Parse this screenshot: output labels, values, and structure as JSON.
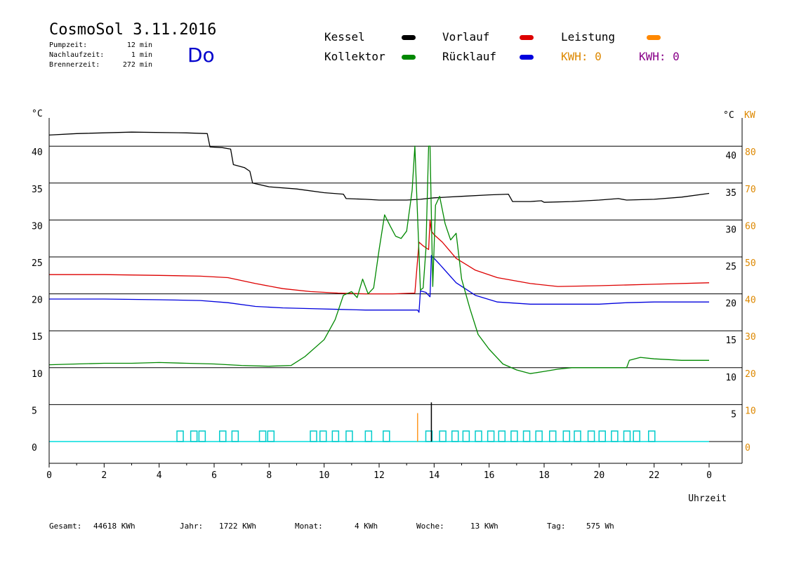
{
  "header": {
    "title": "CosmoSol 3.11.2016",
    "day": "Do",
    "stats": [
      {
        "label": "Pumpzeit:",
        "value": "12 min"
      },
      {
        "label": "Nachlaufzeit:",
        "value": "1 min"
      },
      {
        "label": "Brennerzeit:",
        "value": "272 min"
      }
    ]
  },
  "legend": {
    "kessel": {
      "label": "Kessel",
      "color": "#000000"
    },
    "vorlauf": {
      "label": "Vorlauf",
      "color": "#dd0000"
    },
    "leistung": {
      "label": "Leistung",
      "color": "#ff8800"
    },
    "kollektor": {
      "label": "Kollektor",
      "color": "#008800"
    },
    "ruecklauf": {
      "label": "Rücklauf",
      "color": "#0000dd"
    },
    "kwh1": {
      "label": "KWH: 0",
      "color": "#dd8800"
    },
    "kwh2": {
      "label": "KWH: 0",
      "color": "#880088"
    }
  },
  "footer": [
    {
      "label": "Gesamt:",
      "value": "44618 KWh"
    },
    {
      "label": "Jahr:",
      "value": "1722 KWh"
    },
    {
      "label": "Monat:",
      "value": "4 KWh"
    },
    {
      "label": "Woche:",
      "value": "13 KWh"
    },
    {
      "label": "Tag:",
      "value": "575 Wh"
    }
  ],
  "chart_data": {
    "type": "line",
    "xlabel": "Uhrzeit",
    "ylabel_left": "°C",
    "ylabel_right": "°C",
    "ylabel_right2": "KW",
    "xlim": [
      0,
      24
    ],
    "ylim": [
      -3,
      45
    ],
    "x_ticks": [
      "0",
      "2",
      "4",
      "6",
      "8",
      "10",
      "12",
      "14",
      "16",
      "18",
      "20",
      "22",
      "0"
    ],
    "y_ticks_left": [
      "0",
      "5",
      "10",
      "15",
      "20",
      "25",
      "30",
      "35",
      "40"
    ],
    "y_ticks_right": [
      "5",
      "10",
      "15",
      "20",
      "25",
      "30",
      "35",
      "40"
    ],
    "y_ticks_kw": [
      "0",
      "10",
      "20",
      "30",
      "40",
      "50",
      "60",
      "70",
      "80"
    ],
    "series": [
      {
        "name": "Kessel",
        "color": "#000000",
        "x": [
          0,
          1,
          3,
          5,
          5.75,
          5.85,
          6.3,
          6.6,
          6.7,
          7.1,
          7.3,
          7.4,
          8,
          9,
          10,
          10.7,
          10.8,
          11.5,
          12,
          13,
          13.5,
          14,
          15,
          16,
          16.7,
          16.85,
          17.5,
          17.9,
          18,
          19,
          20,
          20.7,
          21,
          22,
          23,
          24
        ],
        "y": [
          41.5,
          41.7,
          41.9,
          41.8,
          41.7,
          39.9,
          39.8,
          39.6,
          37.5,
          37.1,
          36.6,
          35,
          34.5,
          34.2,
          33.7,
          33.5,
          32.9,
          32.8,
          32.7,
          32.7,
          32.8,
          33,
          33.2,
          33.4,
          33.5,
          32.5,
          32.5,
          32.6,
          32.4,
          32.5,
          32.7,
          32.9,
          32.7,
          32.8,
          33.1,
          33.6
        ]
      },
      {
        "name": "Vorlauf",
        "color": "#dd0000",
        "x": [
          0,
          2,
          4,
          5.5,
          6.5,
          7.5,
          8.5,
          9.5,
          10.5,
          11.5,
          12.5,
          13.3,
          13.45,
          13.6,
          13.8,
          13.85,
          13.9,
          14.0,
          14.3,
          14.8,
          15.5,
          16.3,
          17.5,
          18.5,
          20,
          22,
          24
        ],
        "y": [
          22.6,
          22.6,
          22.5,
          22.4,
          22.2,
          21.4,
          20.7,
          20.3,
          20.1,
          20,
          20,
          20.1,
          27,
          26.5,
          26,
          30,
          28.5,
          28,
          27,
          24.8,
          23.2,
          22.2,
          21.4,
          21,
          21.1,
          21.3,
          21.5
        ]
      },
      {
        "name": "Rücklauf",
        "color": "#0000dd",
        "x": [
          0,
          2,
          4,
          5.5,
          6.5,
          7.5,
          8.5,
          9.5,
          10.5,
          11.5,
          12.5,
          13.4,
          13.45,
          13.5,
          13.7,
          13.85,
          13.9,
          14.2,
          14.8,
          15.5,
          16.3,
          17.5,
          18.5,
          20,
          21,
          22,
          24
        ],
        "y": [
          19.3,
          19.3,
          19.2,
          19.1,
          18.8,
          18.3,
          18.1,
          18,
          17.9,
          17.8,
          17.8,
          17.8,
          17.5,
          20.4,
          20.2,
          19.6,
          25.2,
          24,
          21.5,
          19.8,
          18.9,
          18.6,
          18.6,
          18.6,
          18.8,
          18.9,
          18.9
        ]
      },
      {
        "name": "Kollektor",
        "color": "#008800",
        "x": [
          0,
          1,
          2,
          3,
          4,
          5,
          6,
          7,
          8,
          8.8,
          9.3,
          10,
          10.4,
          10.7,
          11,
          11.2,
          11.4,
          11.6,
          11.8,
          12.0,
          12.2,
          12.4,
          12.6,
          12.8,
          13.0,
          13.2,
          13.3,
          13.5,
          13.6,
          13.7,
          13.8,
          13.85,
          13.95,
          14.05,
          14.2,
          14.4,
          14.6,
          14.8,
          15.0,
          15.3,
          15.6,
          16,
          16.5,
          17,
          17.5,
          18,
          18.5,
          19,
          20,
          21,
          21.1,
          21.5,
          22,
          23,
          24
        ],
        "y": [
          10.4,
          10.5,
          10.6,
          10.6,
          10.7,
          10.6,
          10.5,
          10.3,
          10.2,
          10.3,
          11.5,
          13.8,
          16.5,
          19.8,
          20.3,
          19.5,
          22,
          20,
          20.8,
          26,
          30.7,
          29.2,
          27.8,
          27.5,
          28.5,
          34,
          40,
          20.5,
          20.8,
          26,
          40,
          40,
          21,
          32,
          33.2,
          29.5,
          27.3,
          28.2,
          22,
          18,
          14.5,
          12.5,
          10.5,
          9.7,
          9.2,
          9.5,
          9.8,
          10,
          10,
          10,
          11,
          11.4,
          11.2,
          11,
          11
        ]
      },
      {
        "name": "Leistung",
        "color": "#ff8800",
        "x": [
          13.4,
          13.4,
          13.4
        ],
        "y": [
          0,
          3.8,
          0
        ]
      }
    ],
    "pump_markers_x": [
      4.75,
      5.25,
      5.55,
      6.3,
      6.75,
      7.75,
      8.05,
      9.6,
      9.95,
      10.4,
      10.9,
      11.6,
      12.25,
      13.8,
      14.3,
      14.75,
      15.15,
      15.6,
      16.05,
      16.45,
      16.9,
      17.35,
      17.8,
      18.3,
      18.8,
      19.2,
      19.7,
      20.1,
      20.55,
      21.0,
      21.35,
      21.9
    ]
  }
}
